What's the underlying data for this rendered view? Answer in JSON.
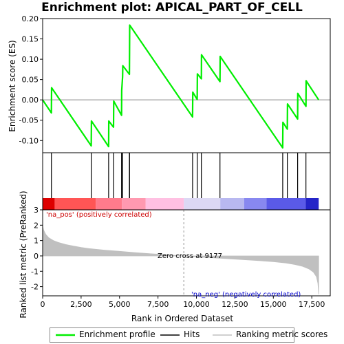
{
  "chart_data": {
    "type": "line",
    "title": "Enrichment plot: APICAL_PART_OF_CELL",
    "top_panel": {
      "ylabel": "Enrichment score (ES)",
      "ylim": [
        -0.13,
        0.2
      ],
      "yticks": [
        -0.1,
        -0.05,
        0.0,
        0.05,
        0.1,
        0.15,
        0.2
      ],
      "ytick_labels": [
        "-0.10",
        "-0.05",
        "0.00",
        "0.05",
        "0.10",
        "0.15",
        "0.20"
      ],
      "series": [
        {
          "name": "Enrichment profile",
          "color": "#00ee00",
          "x": [
            0,
            570,
            580,
            3160,
            3170,
            4290,
            4300,
            4610,
            4620,
            5130,
            5140,
            5200,
            5210,
            5640,
            5650,
            5660,
            9750,
            9760,
            10050,
            10060,
            10320,
            10330,
            11530,
            11540,
            15610,
            15620,
            15910,
            15920,
            16580,
            16590,
            17120,
            17130,
            17950
          ],
          "y": [
            0.0,
            -0.032,
            0.03,
            -0.113,
            -0.052,
            -0.115,
            -0.052,
            -0.067,
            -0.003,
            -0.038,
            0.023,
            0.057,
            0.084,
            0.063,
            0.122,
            0.184,
            -0.042,
            0.019,
            0.001,
            0.064,
            0.052,
            0.111,
            0.045,
            0.107,
            -0.118,
            -0.055,
            -0.072,
            -0.01,
            -0.047,
            0.016,
            -0.016,
            0.047,
            0.0
          ]
        }
      ]
    },
    "hits_panel": {
      "hits_label": "Hits",
      "hit_positions": [
        570,
        3160,
        4290,
        4610,
        5130,
        5200,
        5640,
        5650,
        9750,
        10050,
        10320,
        11530,
        15610,
        15910,
        16580,
        17120
      ]
    },
    "colorbar": {
      "segments": [
        {
          "from": 0,
          "to": 780,
          "color": "#dd0000"
        },
        {
          "from": 780,
          "to": 3450,
          "color": "#ff5555"
        },
        {
          "from": 3450,
          "to": 5150,
          "color": "#ff7b8c"
        },
        {
          "from": 5150,
          "to": 6700,
          "color": "#ff99b0"
        },
        {
          "from": 6700,
          "to": 9180,
          "color": "#ffc0e2"
        },
        {
          "from": 9180,
          "to": 11550,
          "color": "#dcd8f4"
        },
        {
          "from": 11550,
          "to": 13100,
          "color": "#b8b8f0"
        },
        {
          "from": 13100,
          "to": 14550,
          "color": "#8888f0"
        },
        {
          "from": 14550,
          "to": 17100,
          "color": "#5a5ae8"
        },
        {
          "from": 17100,
          "to": 17950,
          "color": "#2424c8"
        }
      ]
    },
    "bottom_panel": {
      "ylabel": "Ranked list metric (PreRanked)",
      "xlabel": "Rank in Ordered Dataset",
      "xlim": [
        0,
        18700
      ],
      "ylim": [
        -2.6,
        3.0
      ],
      "xticks": [
        0,
        2500,
        5000,
        7500,
        10000,
        12500,
        15000,
        17500
      ],
      "xtick_labels": [
        "0",
        "2,500",
        "5,000",
        "7,500",
        "10,000",
        "12,500",
        "15,000",
        "17,500"
      ],
      "yticks": [
        -2,
        -1,
        0,
        1,
        2,
        3
      ],
      "ytick_labels": [
        "-2",
        "-1",
        "0",
        "1",
        "2",
        "3"
      ],
      "series": [
        {
          "name": "Ranking metric scores",
          "color": "#c0c0c0",
          "x": [
            0,
            60,
            200,
            400,
            700,
            1000,
            1500,
            2000,
            2500,
            3000,
            4000,
            5000,
            6000,
            7000,
            8000,
            9177,
            10000,
            11000,
            12000,
            13000,
            14000,
            15000,
            15800,
            16400,
            16900,
            17300,
            17600,
            17800,
            17900,
            17950
          ],
          "y": [
            1.98,
            1.7,
            1.4,
            1.18,
            1.0,
            0.88,
            0.74,
            0.64,
            0.55,
            0.48,
            0.38,
            0.3,
            0.22,
            0.14,
            0.08,
            0.0,
            -0.06,
            -0.12,
            -0.18,
            -0.24,
            -0.3,
            -0.38,
            -0.46,
            -0.56,
            -0.68,
            -0.84,
            -1.05,
            -1.35,
            -1.8,
            -2.5
          ]
        }
      ],
      "zero_cross_label": "Zero cross at 9177",
      "zero_cross_rank": 9177,
      "pos_label": "'na_pos' (positively correlated)",
      "neg_label": "'na_neg' (negatively correlated)"
    }
  },
  "legend": {
    "items": [
      {
        "label": "Enrichment profile",
        "color": "#00ee00"
      },
      {
        "label": "Hits",
        "color": "#000000"
      },
      {
        "label": "Ranking metric scores",
        "color": "#c0c0c0"
      }
    ]
  }
}
